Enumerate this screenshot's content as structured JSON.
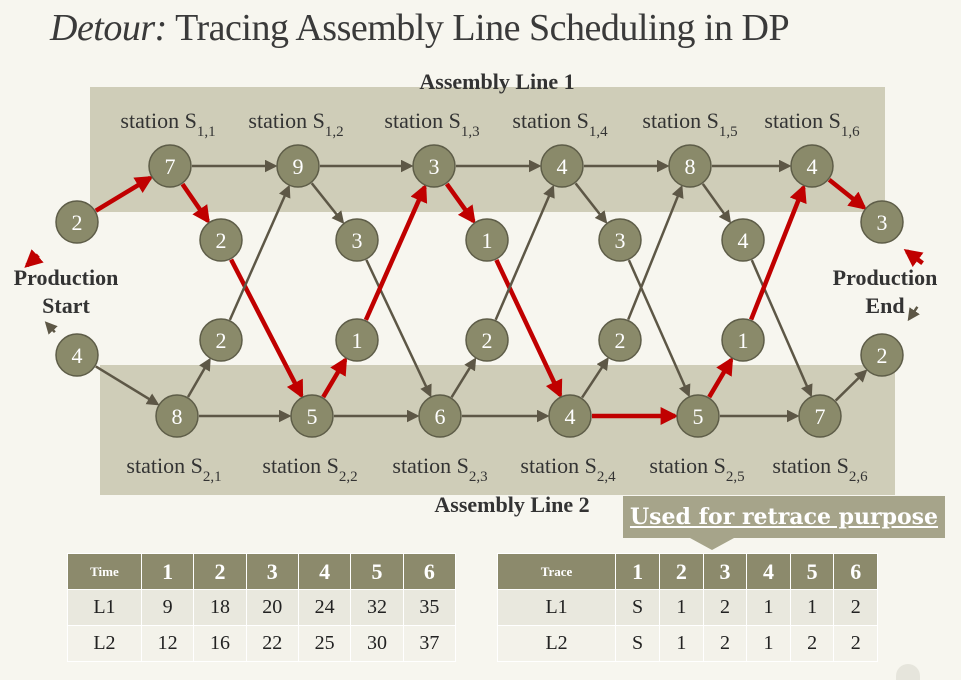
{
  "title": {
    "italic": "Detour:",
    "rest": " Tracing Assembly Line Scheduling in DP"
  },
  "diagram": {
    "line1_label": "Assembly Line 1",
    "line2_label": "Assembly Line 2",
    "start_label": [
      "Production",
      "Start"
    ],
    "end_label": [
      "Production",
      "End"
    ],
    "line1_stations": [
      {
        "prefix": "station S",
        "sub": "1,1"
      },
      {
        "prefix": "station S",
        "sub": "1,2"
      },
      {
        "prefix": "station S",
        "sub": "1,3"
      },
      {
        "prefix": "station S",
        "sub": "1,4"
      },
      {
        "prefix": "station S",
        "sub": "1,5"
      },
      {
        "prefix": "station S",
        "sub": "1,6"
      }
    ],
    "line2_stations": [
      {
        "prefix": "station S",
        "sub": "2,1"
      },
      {
        "prefix": "station S",
        "sub": "2,2"
      },
      {
        "prefix": "station S",
        "sub": "2,3"
      },
      {
        "prefix": "station S",
        "sub": "2,4"
      },
      {
        "prefix": "station S",
        "sub": "2,5"
      },
      {
        "prefix": "station S",
        "sub": "2,6"
      }
    ],
    "entry_times": {
      "line1": "2",
      "line2": "4"
    },
    "exit_times": {
      "line1": "3",
      "line2": "2"
    },
    "line1_costs": [
      "7",
      "9",
      "3",
      "4",
      "8",
      "4"
    ],
    "line2_costs": [
      "8",
      "5",
      "6",
      "4",
      "5",
      "7"
    ],
    "transfer_1_to_2": [
      "2",
      "3",
      "1",
      "3",
      "4"
    ],
    "transfer_2_to_1": [
      "2",
      "1",
      "2",
      "2",
      "1"
    ],
    "colors": {
      "node": "#8a8a6a",
      "path": "#c00000",
      "edge": "#5d5746",
      "band": "#cfcdb8"
    }
  },
  "retrace_note": "Used for retrace purpose",
  "time_table": {
    "corner": "Time",
    "headers": [
      "1",
      "2",
      "3",
      "4",
      "5",
      "6"
    ],
    "rows": [
      {
        "label": "L1",
        "values": [
          "9",
          "18",
          "20",
          "24",
          "32",
          "35"
        ]
      },
      {
        "label": "L2",
        "values": [
          "12",
          "16",
          "22",
          "25",
          "30",
          "37"
        ]
      }
    ]
  },
  "trace_table": {
    "corner": "Trace",
    "headers": [
      "1",
      "2",
      "3",
      "4",
      "5",
      "6"
    ],
    "rows": [
      {
        "label": "L1",
        "values": [
          "S",
          "1",
          "2",
          "1",
          "1",
          "2"
        ]
      },
      {
        "label": "L2",
        "values": [
          "S",
          "1",
          "2",
          "1",
          "2",
          "2"
        ]
      }
    ]
  }
}
